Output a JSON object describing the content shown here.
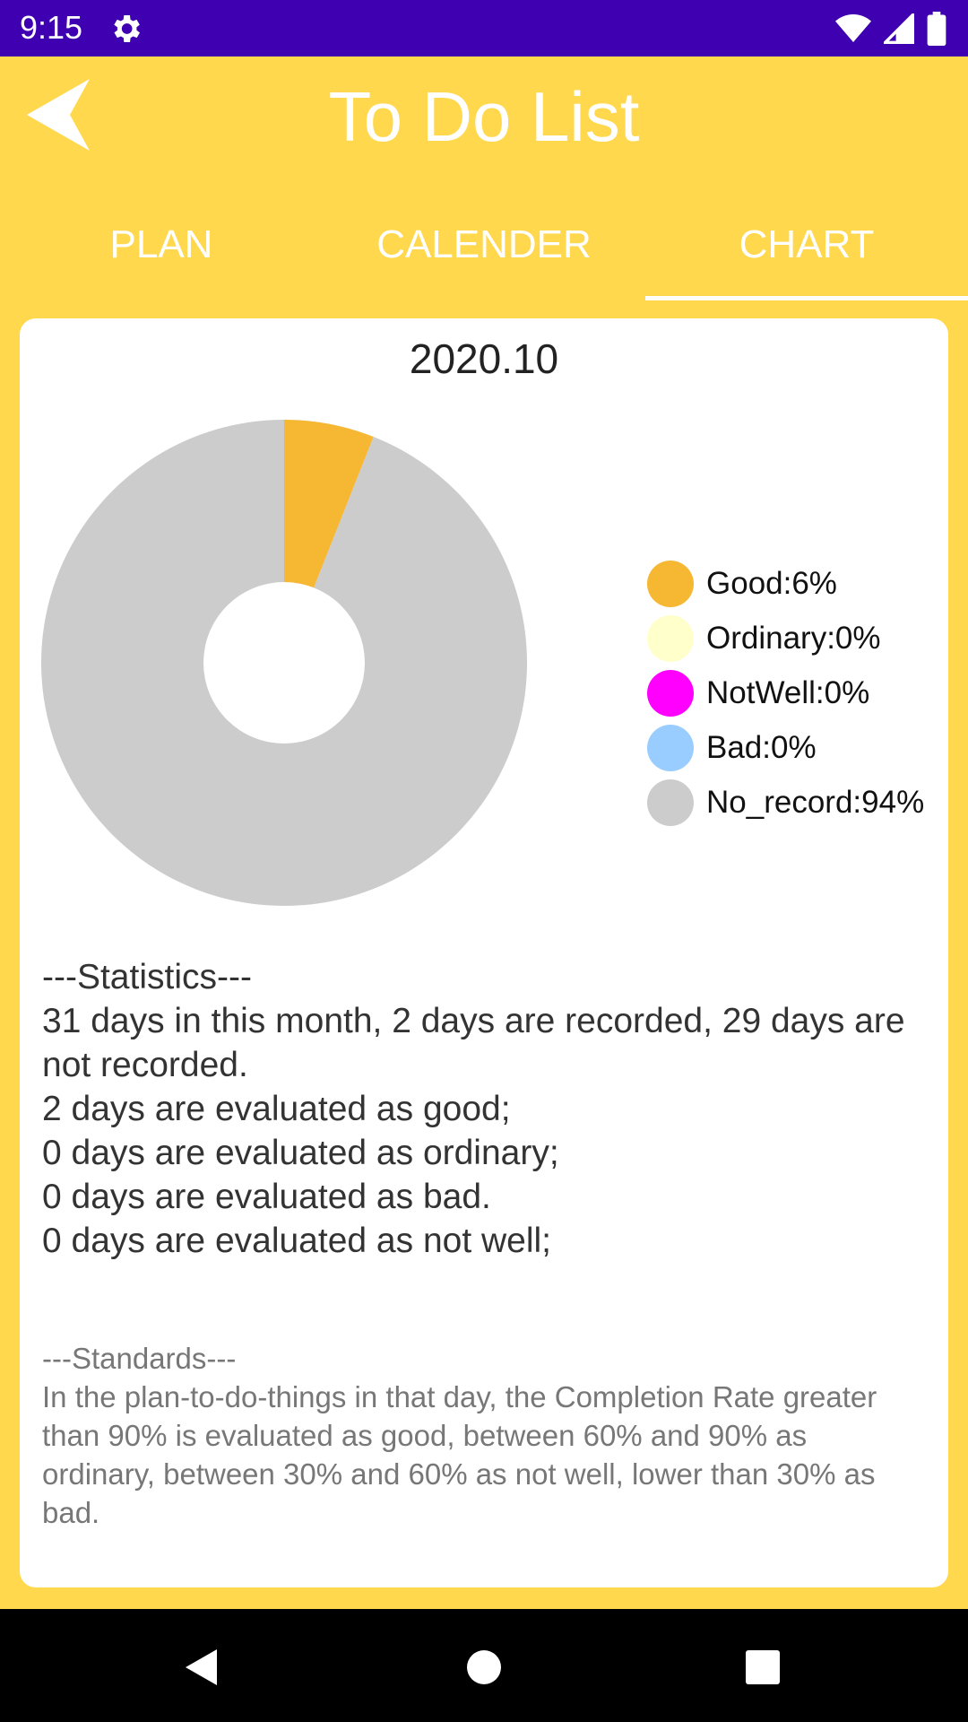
{
  "status_bar": {
    "time": "9:15",
    "icons": [
      "gear-icon",
      "wifi-icon",
      "signal-icon",
      "battery-icon"
    ]
  },
  "header": {
    "title": "To Do List",
    "back_icon": "back-arrow-icon"
  },
  "tabs": [
    {
      "label": "PLAN",
      "active": false
    },
    {
      "label": "CALENDER",
      "active": false
    },
    {
      "label": "CHART",
      "active": true
    }
  ],
  "card": {
    "month": "2020.10",
    "legend": [
      {
        "label": "Good:6%",
        "color": "#F6B733"
      },
      {
        "label": "Ordinary:0%",
        "color": "#FFFFCC"
      },
      {
        "label": "NotWell:0%",
        "color": "#FF00FF"
      },
      {
        "label": "Bad:0%",
        "color": "#99CCFF"
      },
      {
        "label": "No_record:94%",
        "color": "#CCCCCC"
      }
    ],
    "statistics": {
      "heading": "---Statistics---",
      "lines": [
        "31 days in this month, 2 days are recorded, 29 days are not recorded.",
        "2 days are evaluated as good;",
        "0 days are evaluated as ordinary;",
        "0 days are evaluated as bad.",
        "0 days are evaluated as not well;"
      ]
    },
    "standards": {
      "heading": "---Standards---",
      "text": "In the plan-to-do-things in that day, the Completion Rate greater than 90% is evaluated as good, between 60% and 90% as ordinary, between 30% and 60% as not well, lower than 30% as bad."
    }
  },
  "chart_data": {
    "type": "pie",
    "categories": [
      "Good",
      "Ordinary",
      "NotWell",
      "Bad",
      "No_record"
    ],
    "values": [
      6,
      0,
      0,
      0,
      94
    ],
    "colors": [
      "#F6B733",
      "#FFFFCC",
      "#FF00FF",
      "#99CCFF",
      "#CCCCCC"
    ],
    "donut_hole": true,
    "legend": "right"
  },
  "nav_bar": {
    "icons": [
      "back-triangle-icon",
      "home-circle-icon",
      "recents-square-icon"
    ]
  }
}
